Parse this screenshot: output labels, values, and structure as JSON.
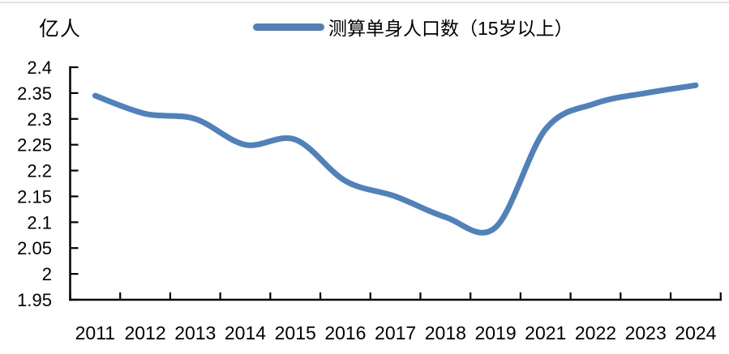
{
  "header": {
    "unit_label": "亿人",
    "legend": {
      "series_label": "测算单身人口数（15岁以上）",
      "marker_color": "#4F81BD"
    }
  },
  "chart_data": {
    "type": "line",
    "title": "",
    "series_name": "测算单身人口数（15岁以上）",
    "ylabel": "亿人",
    "categories": [
      "2011",
      "2012",
      "2013",
      "2014",
      "2015",
      "2016",
      "2017",
      "2018",
      "2019",
      "2021",
      "2022",
      "2023",
      "2024"
    ],
    "values": [
      2.345,
      2.31,
      2.3,
      2.25,
      2.26,
      2.18,
      2.15,
      2.11,
      2.09,
      2.28,
      2.33,
      2.35,
      2.365
    ],
    "ylim": [
      1.95,
      2.4
    ],
    "ytick_step": 0.05,
    "ytick_labels": [
      "2.4",
      "2.35",
      "2.3",
      "2.25",
      "2.2",
      "2.15",
      "2.1",
      "2.05",
      "2",
      "1.95"
    ],
    "line_color": "#4F81BD",
    "axis_color": "#000000",
    "smooth": true,
    "grid": false,
    "legend_position": "top-center"
  }
}
